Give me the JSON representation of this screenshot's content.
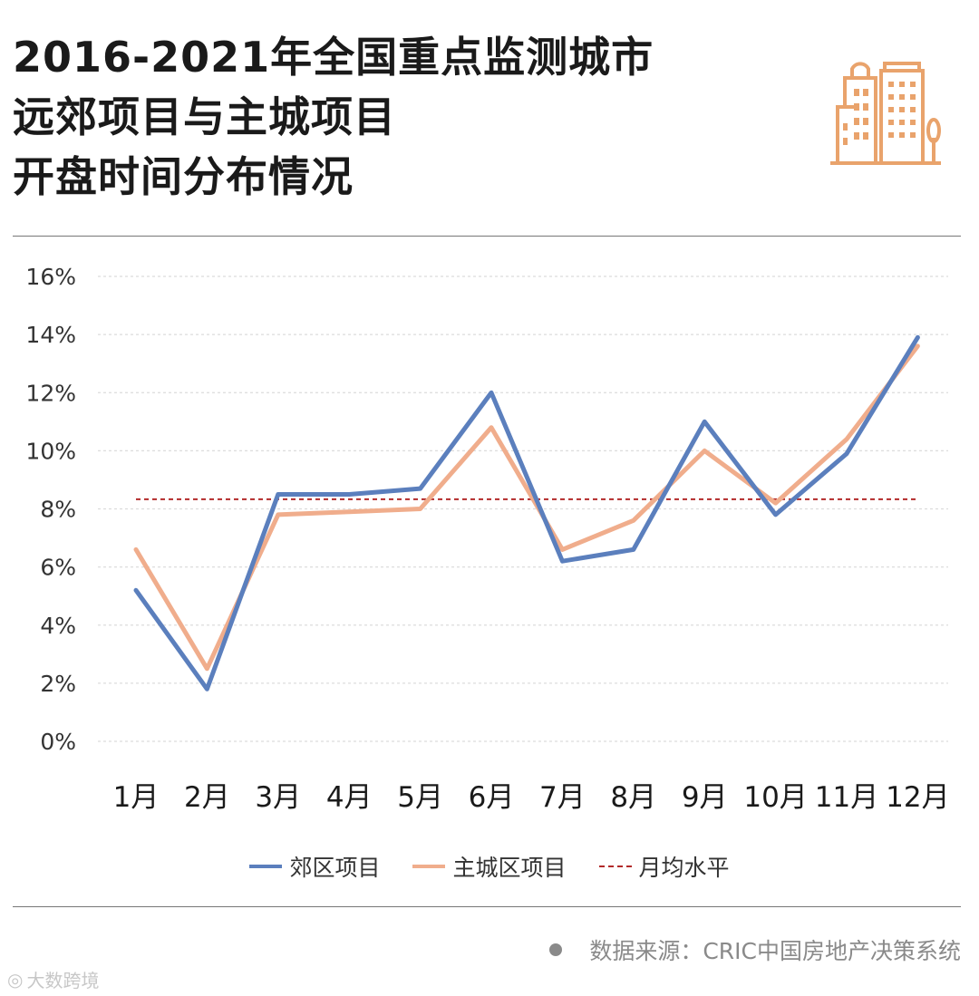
{
  "title_lines": [
    "2016-2021年全国重点监测城市",
    "远郊项目与主城项目",
    "开盘时间分布情况"
  ],
  "source": "数据来源：CRIC中国房地产决策系统",
  "watermark": "大数跨境",
  "colors": {
    "suburb": "#5b7fbd",
    "city": "#f0ad8c",
    "average": "#b22a2a",
    "logo": "#e9a36c"
  },
  "icons": {
    "logo": "city-buildings-icon"
  },
  "chart_data": {
    "type": "line",
    "categories": [
      "1月",
      "2月",
      "3月",
      "4月",
      "5月",
      "6月",
      "7月",
      "8月",
      "9月",
      "10月",
      "11月",
      "12月"
    ],
    "series": [
      {
        "name": "郊区项目",
        "values": [
          5.2,
          1.8,
          8.5,
          8.5,
          8.7,
          12.0,
          6.2,
          6.6,
          11.0,
          7.8,
          9.9,
          13.9
        ]
      },
      {
        "name": "主城区项目",
        "values": [
          6.6,
          2.5,
          7.8,
          7.9,
          8.0,
          10.8,
          6.6,
          7.6,
          10.0,
          8.2,
          10.4,
          13.6
        ]
      }
    ],
    "average_line": {
      "name": "月均水平",
      "value": 8.33
    },
    "ylim": [
      0,
      16
    ],
    "yticks": [
      0,
      2,
      4,
      6,
      8,
      10,
      12,
      14,
      16
    ],
    "ytick_labels": [
      "0%",
      "2%",
      "4%",
      "6%",
      "8%",
      "10%",
      "12%",
      "14%",
      "16%"
    ],
    "grid": true,
    "legend_position": "bottom"
  }
}
